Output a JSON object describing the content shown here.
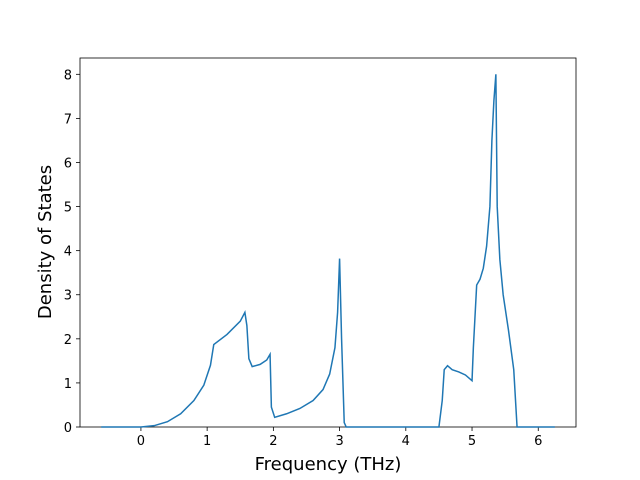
{
  "chart_data": {
    "type": "line",
    "xlabel": "Frequency (THz)",
    "ylabel": "Density of States",
    "x": [
      -0.6,
      0,
      0.2,
      0.4,
      0.6,
      0.8,
      0.95,
      1.05,
      1.1,
      1.3,
      1.5,
      1.57,
      1.6,
      1.63,
      1.68,
      1.8,
      1.9,
      1.95,
      1.97,
      2.02,
      2.2,
      2.4,
      2.6,
      2.75,
      2.85,
      2.93,
      2.97,
      3.0,
      3.03,
      3.07,
      3.1,
      4.5,
      4.55,
      4.58,
      4.63,
      4.7,
      4.8,
      4.9,
      5.0,
      5.02,
      5.07,
      5.12,
      5.17,
      5.22,
      5.27,
      5.3,
      5.33,
      5.36,
      5.38,
      5.42,
      5.47,
      5.55,
      5.63,
      5.68,
      6.25
    ],
    "series": [
      {
        "color": "#1f77b4",
        "values": [
          0,
          0,
          0.03,
          0.12,
          0.3,
          0.6,
          0.95,
          1.4,
          1.87,
          2.1,
          2.4,
          2.6,
          2.3,
          1.55,
          1.37,
          1.42,
          1.52,
          1.65,
          0.45,
          0.22,
          0.3,
          0.42,
          0.6,
          0.85,
          1.2,
          1.8,
          2.6,
          3.82,
          2.0,
          0.1,
          0,
          0,
          0.6,
          1.3,
          1.39,
          1.3,
          1.25,
          1.18,
          1.05,
          1.8,
          3.22,
          3.35,
          3.6,
          4.1,
          5.0,
          6.5,
          7.4,
          8.0,
          5.0,
          3.8,
          3.0,
          2.2,
          1.3,
          0,
          0
        ]
      }
    ],
    "xlim": [
      -0.92,
      6.57
    ],
    "xticks": [
      0,
      1,
      2,
      3,
      4,
      5,
      6
    ],
    "ylim": [
      0,
      8.37
    ],
    "yticks": [
      0,
      1,
      2,
      3,
      4,
      5,
      6,
      7,
      8
    ]
  }
}
